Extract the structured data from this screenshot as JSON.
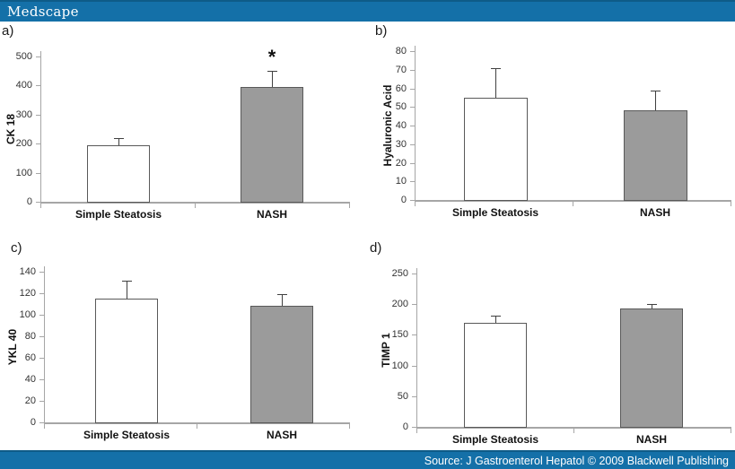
{
  "header": {
    "brand": "Medscape"
  },
  "footer": {
    "source": "Source: J Gastroenterol Hepatol © 2009 Blackwell Publishing"
  },
  "colors": {
    "banner_blue": "#1470a8",
    "banner_edge": "#0e5b88",
    "axis_gray": "#a6a6a6",
    "bar_border": "#595959",
    "error_bar": "#404040",
    "bar_white": "#ffffff",
    "bar_gray": "#9b9b9b"
  },
  "chart_data": [
    {
      "id": "a",
      "type": "bar",
      "panel_label": "a)",
      "ylabel": "CK 18",
      "xlabel": "",
      "ylim": [
        0,
        500
      ],
      "ytick_step": 100,
      "grid": false,
      "legend": "none",
      "categories": [
        "Simple Steatosis",
        "NASH"
      ],
      "values": [
        195,
        395
      ],
      "errors_plus": [
        25,
        55
      ],
      "bar_fills": [
        "#ffffff",
        "#9b9b9b"
      ],
      "annotations": [
        {
          "category": "NASH",
          "text": "*"
        }
      ]
    },
    {
      "id": "b",
      "type": "bar",
      "panel_label": "b)",
      "ylabel": "Hyaluronic Acid",
      "xlabel": "",
      "ylim": [
        0,
        80
      ],
      "ytick_step": 10,
      "grid": false,
      "legend": "none",
      "categories": [
        "Simple Steatosis",
        "NASH"
      ],
      "values": [
        55,
        48
      ],
      "errors_plus": [
        16,
        11
      ],
      "bar_fills": [
        "#ffffff",
        "#9b9b9b"
      ],
      "annotations": []
    },
    {
      "id": "c",
      "type": "bar",
      "panel_label": "c)",
      "ylabel": "YKL 40",
      "xlabel": "",
      "ylim": [
        0,
        140
      ],
      "ytick_step": 20,
      "grid": false,
      "legend": "none",
      "categories": [
        "Simple Steatosis",
        "NASH"
      ],
      "values": [
        115,
        108
      ],
      "errors_plus": [
        17,
        11
      ],
      "bar_fills": [
        "#ffffff",
        "#9b9b9b"
      ],
      "annotations": []
    },
    {
      "id": "d",
      "type": "bar",
      "panel_label": "d)",
      "ylabel": "TIMP 1",
      "xlabel": "",
      "ylim": [
        0,
        250
      ],
      "ytick_step": 50,
      "grid": false,
      "legend": "none",
      "categories": [
        "Simple Steatosis",
        "NASH"
      ],
      "values": [
        170,
        193
      ],
      "errors_plus": [
        11,
        8
      ],
      "bar_fills": [
        "#ffffff",
        "#9b9b9b"
      ],
      "annotations": []
    }
  ]
}
